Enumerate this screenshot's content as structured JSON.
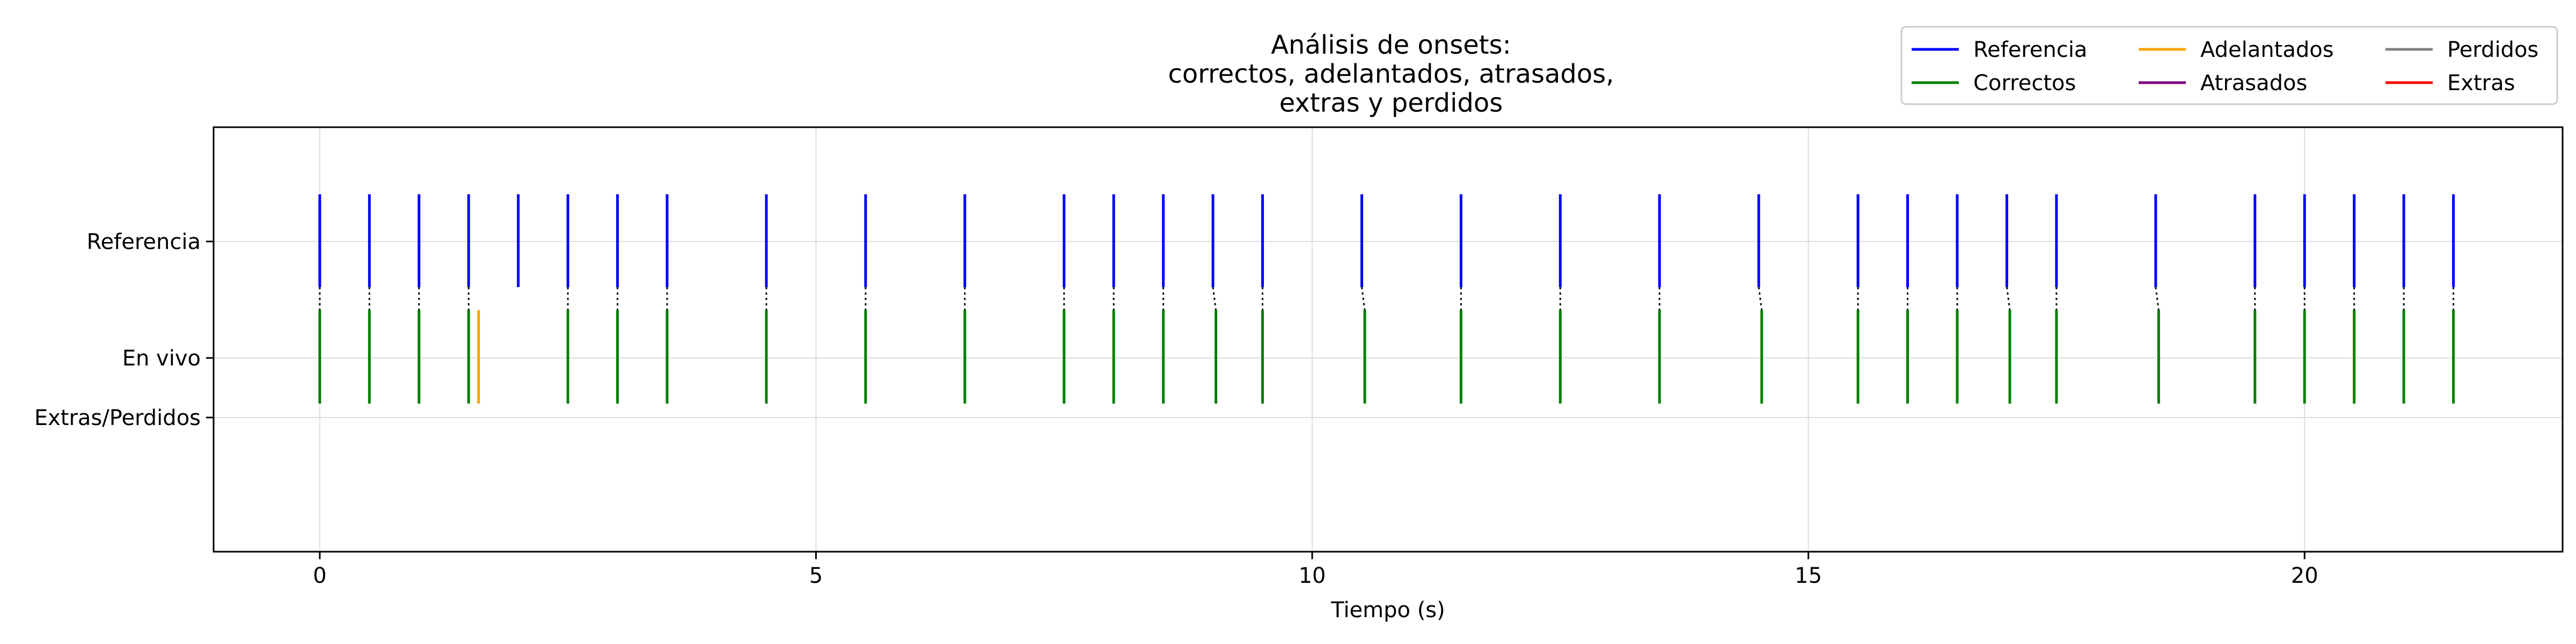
{
  "chart_data": {
    "type": "scatter",
    "title": [
      "Análisis de onsets:",
      "correctos, adelantados, atrasados,",
      "extras y perdidos"
    ],
    "xlabel": "Tiempo (s)",
    "ylabel": "",
    "xlim": [
      -1.07,
      22.6
    ],
    "xticks": [
      0,
      5,
      10,
      15,
      20
    ],
    "yticks": [
      "Referencia",
      "En vivo",
      "Extras/Perdidos"
    ],
    "grid": true,
    "legend_position": "top-right",
    "legend": [
      {
        "label": "Referencia",
        "color": "#0000ff"
      },
      {
        "label": "Correctos",
        "color": "#008000"
      },
      {
        "label": "Adelantados",
        "color": "#ffa500"
      },
      {
        "label": "Atrasados",
        "color": "#800080"
      },
      {
        "label": "Perdidos",
        "color": "#808080"
      },
      {
        "label": "Extras",
        "color": "#ff0000"
      }
    ],
    "series": [
      {
        "name": "Referencia",
        "color": "#0000ff",
        "x": [
          0,
          0.5,
          1.0,
          1.5,
          2.0,
          2.5,
          3.0,
          3.5,
          4.5,
          5.5,
          6.5,
          7.5,
          8.0,
          8.5,
          9.0,
          9.5,
          10.5,
          11.5,
          12.5,
          13.5,
          14.5,
          15.5,
          16.0,
          16.5,
          17.0,
          17.5,
          18.5,
          19.5,
          20.0,
          20.5,
          21.0,
          21.5
        ]
      },
      {
        "name": "Correctos",
        "color": "#008000",
        "x": [
          0,
          0.5,
          1.0,
          1.5,
          2.5,
          3.0,
          3.5,
          4.5,
          5.5,
          6.5,
          7.5,
          8.0,
          8.5,
          9.03,
          9.5,
          10.53,
          11.5,
          12.5,
          13.5,
          14.53,
          15.5,
          16.0,
          16.5,
          17.03,
          17.5,
          18.53,
          19.5,
          20.0,
          20.5,
          21.0,
          21.5
        ]
      },
      {
        "name": "Adelantados",
        "color": "#ffa500",
        "x": [
          1.6
        ]
      },
      {
        "name": "Atrasados",
        "color": "#800080",
        "x": []
      },
      {
        "name": "Perdidos",
        "color": "#808080",
        "x": []
      },
      {
        "name": "Extras",
        "color": "#ff0000",
        "x": []
      }
    ]
  }
}
